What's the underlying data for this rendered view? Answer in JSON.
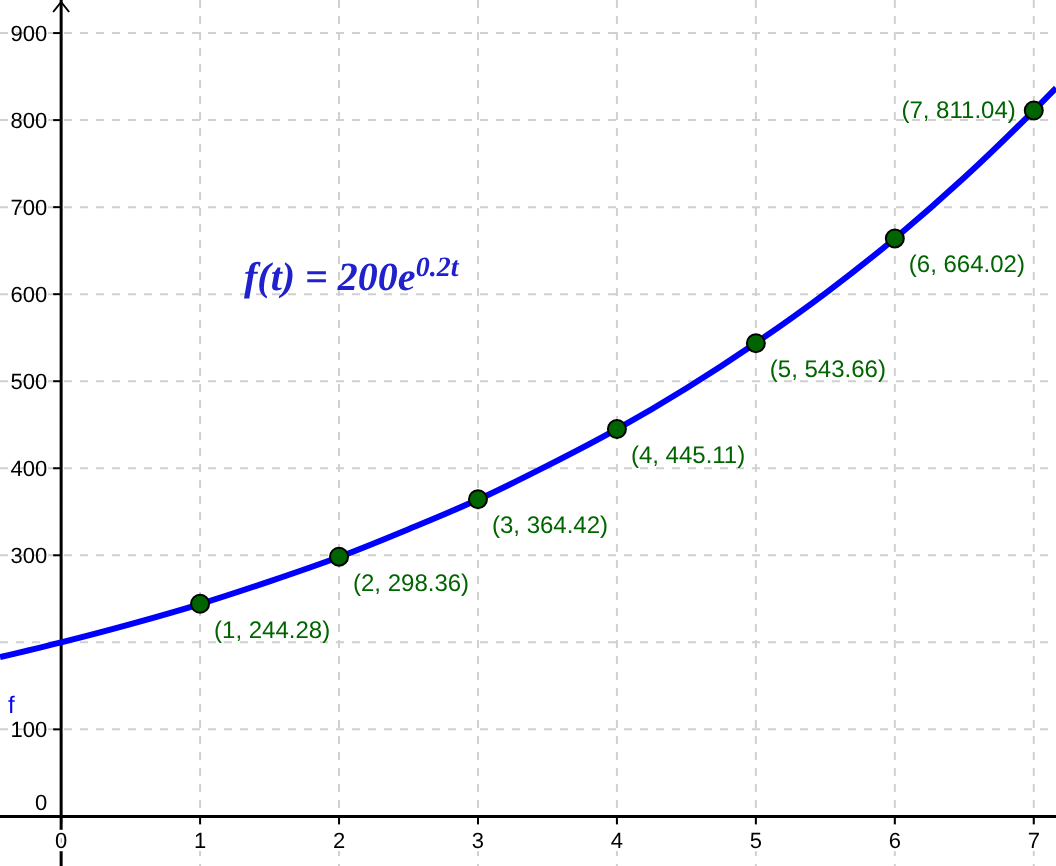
{
  "chart_data": {
    "type": "line",
    "xlim": [
      -0.44,
      7.16
    ],
    "ylim": [
      -57,
      938
    ],
    "xticks": [
      0,
      1,
      2,
      3,
      4,
      5,
      6,
      7
    ],
    "yticks": [
      0,
      100,
      {
        "value": 200,
        "label": null
      },
      300,
      400,
      500,
      600,
      700,
      800,
      900
    ],
    "grid": true,
    "annotations": [
      "f(t) = 200e$^{0.2t}$"
    ],
    "series": [
      {
        "name": "f",
        "color": "#0000ff",
        "x": [
          -0.44,
          0,
          0.5,
          1,
          1.5,
          2,
          2.5,
          3,
          3.5,
          4,
          4.5,
          5,
          5.5,
          6,
          6.5,
          7,
          7.16
        ],
        "values": [
          183,
          200,
          221,
          244,
          270,
          298,
          330,
          364,
          403,
          445,
          492,
          544,
          601,
          664,
          734,
          811,
          837
        ]
      },
      {
        "type": "scatter",
        "color": "#006400",
        "marker": "circle",
        "x": [
          1,
          2,
          3,
          4,
          5,
          6,
          7
        ],
        "values": [
          244.28,
          298.36,
          364.42,
          445.11,
          543.66,
          664.02,
          811.04
        ],
        "value_labels": [
          "(1, 244.28)",
          "(2, 298.36)",
          "(3, 364.42)",
          "(4, 445.11)",
          "(5, 543.66)",
          "(6, 664.02)",
          "(7, 811.04)"
        ]
      }
    ]
  }
}
